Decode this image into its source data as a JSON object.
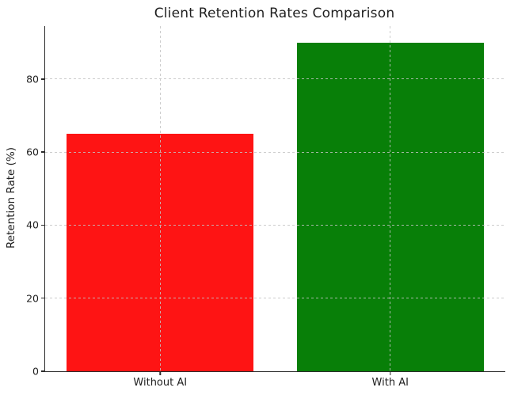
{
  "chart_data": {
    "type": "bar",
    "title": "Client Retention Rates Comparison",
    "categories": [
      "Without AI",
      "With AI"
    ],
    "values": [
      65,
      90
    ],
    "bar_colors": [
      "#fe1414",
      "#087f08"
    ],
    "xlabel": "",
    "ylabel": "Retention Rate (%)",
    "ylim": [
      0,
      94.5
    ],
    "yticks": [
      0,
      20,
      40,
      60,
      80
    ],
    "grid": "dashed both axes, drawn above bars",
    "legend": "none",
    "background_color": "#ffffff",
    "axis_color": "#2b2b2b",
    "text_color": "#1f1f1f"
  }
}
